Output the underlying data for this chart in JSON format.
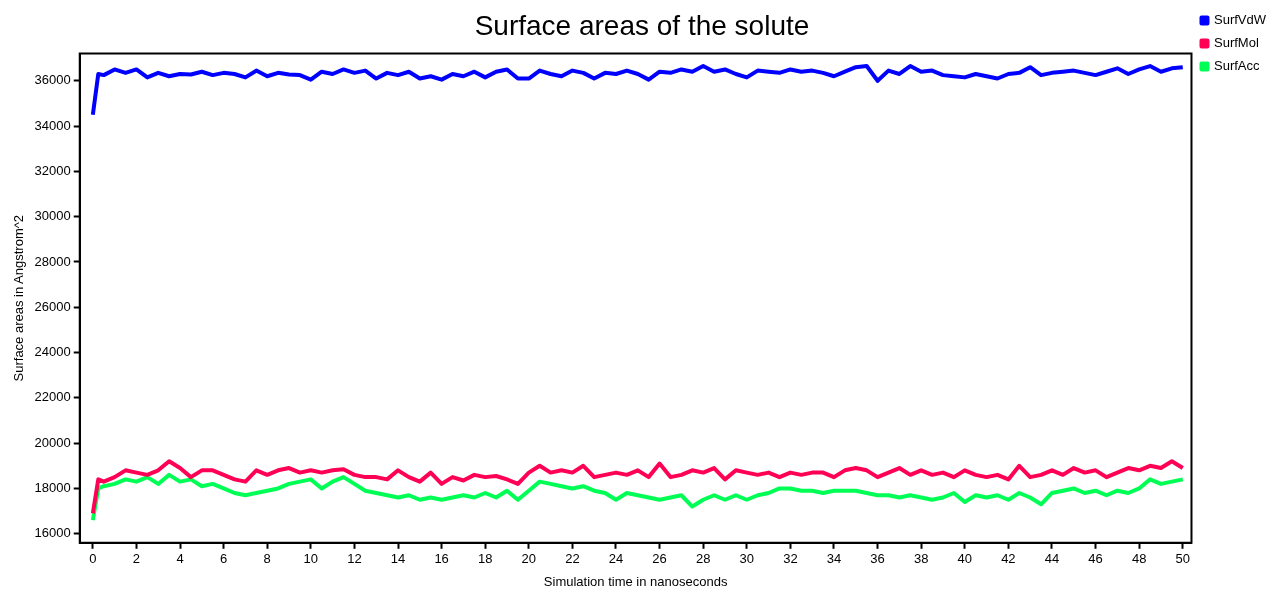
{
  "chart_data": {
    "type": "line",
    "title": "Surface areas of the solute",
    "xlabel": "Simulation time in nanoseconds",
    "ylabel": "Surface areas in Angstrom^2",
    "x": [
      0,
      0.25,
      0.5,
      1,
      1.5,
      2,
      2.5,
      3,
      3.5,
      4,
      4.5,
      5,
      5.5,
      6,
      6.5,
      7,
      7.5,
      8,
      8.5,
      9,
      9.5,
      10,
      10.5,
      11,
      11.5,
      12,
      12.5,
      13,
      13.5,
      14,
      14.5,
      15,
      15.5,
      16,
      16.5,
      17,
      17.5,
      18,
      18.5,
      19,
      19.5,
      20,
      20.5,
      21,
      21.5,
      22,
      22.5,
      23,
      23.5,
      24,
      24.5,
      25,
      25.5,
      26,
      26.5,
      27,
      27.5,
      28,
      28.5,
      29,
      29.5,
      30,
      30.5,
      31,
      31.5,
      32,
      32.5,
      33,
      33.5,
      34,
      34.5,
      35,
      35.5,
      36,
      36.5,
      37,
      37.5,
      38,
      38.5,
      39,
      39.5,
      40,
      40.5,
      41,
      41.5,
      42,
      42.5,
      43,
      43.5,
      44,
      44.5,
      45,
      45.5,
      46,
      46.5,
      47,
      47.5,
      48,
      48.5,
      49,
      49.5,
      50
    ],
    "series": [
      {
        "name": "SurfVdW",
        "color": "#0000ff",
        "values": [
          34500,
          36300,
          36250,
          36500,
          36350,
          36500,
          36150,
          36350,
          36200,
          36300,
          36280,
          36400,
          36250,
          36350,
          36300,
          36150,
          36450,
          36200,
          36350,
          36280,
          36250,
          36050,
          36400,
          36300,
          36500,
          36350,
          36450,
          36100,
          36350,
          36250,
          36400,
          36100,
          36200,
          36050,
          36300,
          36200,
          36400,
          36150,
          36400,
          36500,
          36100,
          36100,
          36450,
          36300,
          36200,
          36450,
          36350,
          36100,
          36350,
          36300,
          36450,
          36300,
          36050,
          36400,
          36350,
          36500,
          36400,
          36650,
          36400,
          36500,
          36300,
          36150,
          36450,
          36400,
          36350,
          36500,
          36400,
          36450,
          36350,
          36200,
          36400,
          36600,
          36650,
          36000,
          36450,
          36300,
          36650,
          36400,
          36450,
          36250,
          36200,
          36150,
          36300,
          36200,
          36100,
          36300,
          36350,
          36600,
          36250,
          36350,
          36400,
          36450,
          36350,
          36250,
          36400,
          36550,
          36300,
          36500,
          36650,
          36400,
          36550,
          36600
        ]
      },
      {
        "name": "SurfMol",
        "color": "#ff0055",
        "values": [
          16900,
          18400,
          18300,
          18500,
          18800,
          18700,
          18600,
          18800,
          19200,
          18900,
          18500,
          18800,
          18800,
          18600,
          18400,
          18300,
          18800,
          18600,
          18800,
          18900,
          18700,
          18800,
          18700,
          18800,
          18850,
          18600,
          18500,
          18500,
          18400,
          18800,
          18500,
          18300,
          18700,
          18200,
          18500,
          18350,
          18600,
          18500,
          18550,
          18400,
          18200,
          18700,
          19000,
          18700,
          18800,
          18700,
          19000,
          18500,
          18600,
          18700,
          18600,
          18800,
          18500,
          19100,
          18500,
          18600,
          18800,
          18700,
          18900,
          18400,
          18800,
          18700,
          18600,
          18700,
          18500,
          18700,
          18600,
          18700,
          18700,
          18500,
          18800,
          18900,
          18800,
          18500,
          18700,
          18900,
          18600,
          18800,
          18600,
          18700,
          18500,
          18800,
          18600,
          18500,
          18600,
          18400,
          19000,
          18500,
          18600,
          18800,
          18600,
          18900,
          18700,
          18800,
          18500,
          18700,
          18900,
          18800,
          19000,
          18900,
          19200,
          18900
        ]
      },
      {
        "name": "SurfAcc",
        "color": "#00ff55",
        "values": [
          16600,
          18000,
          18100,
          18200,
          18400,
          18300,
          18500,
          18200,
          18600,
          18300,
          18400,
          18100,
          18200,
          18000,
          17800,
          17700,
          17800,
          17900,
          18000,
          18200,
          18300,
          18400,
          18000,
          18300,
          18500,
          18200,
          17900,
          17800,
          17700,
          17600,
          17700,
          17500,
          17600,
          17500,
          17600,
          17700,
          17600,
          17800,
          17600,
          17900,
          17500,
          17900,
          18300,
          18200,
          18100,
          18000,
          18100,
          17900,
          17800,
          17500,
          17800,
          17700,
          17600,
          17500,
          17600,
          17700,
          17200,
          17500,
          17700,
          17500,
          17700,
          17500,
          17700,
          17800,
          18000,
          18000,
          17900,
          17900,
          17800,
          17900,
          17900,
          17900,
          17800,
          17700,
          17700,
          17600,
          17700,
          17600,
          17500,
          17600,
          17800,
          17400,
          17700,
          17600,
          17700,
          17500,
          17800,
          17600,
          17300,
          17800,
          17900,
          18000,
          17800,
          17900,
          17700,
          17900,
          17800,
          18000,
          18400,
          18200,
          18300,
          18400
        ]
      }
    ],
    "xlim": [
      -0.6,
      50.4
    ],
    "xticks": [
      0,
      2,
      4,
      6,
      8,
      10,
      12,
      14,
      16,
      18,
      20,
      22,
      24,
      26,
      28,
      30,
      32,
      34,
      36,
      38,
      40,
      42,
      44,
      46,
      48,
      50
    ],
    "ylim": [
      15600,
      37200
    ],
    "yticks": [
      16000,
      18000,
      20000,
      22000,
      24000,
      26000,
      28000,
      30000,
      32000,
      34000,
      36000
    ],
    "grid": false,
    "legend": "top right",
    "marker": "none",
    "line_style": "solid"
  }
}
